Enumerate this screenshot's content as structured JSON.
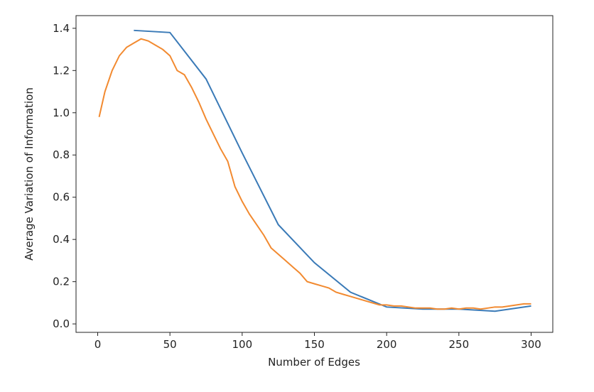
{
  "chart_data": {
    "type": "line",
    "x_label": "Number of Edges",
    "y_label": "Average Variation of Information",
    "xlim": [
      -15,
      315
    ],
    "ylim": [
      -0.04,
      1.46
    ],
    "xticks": [
      0,
      50,
      100,
      150,
      200,
      250,
      300
    ],
    "yticks": [
      {
        "value": 0,
        "label": "0.0"
      },
      0.2,
      0.4,
      0.6,
      0.8,
      {
        "value": 1,
        "label": "1.0"
      },
      1.2,
      1.4
    ],
    "grid": false,
    "series": [
      {
        "color": "#3a7ab7",
        "x": [
          25,
          50,
          75,
          100,
          125,
          150,
          175,
          200,
          225,
          250,
          275,
          300
        ],
        "values": [
          1.39,
          1.38,
          1.16,
          0.81,
          0.47,
          0.29,
          0.15,
          0.08,
          0.07,
          0.07,
          0.06,
          0.085
        ]
      },
      {
        "color": "#f28a30",
        "x": [
          1,
          5,
          10,
          15,
          20,
          25,
          30,
          35,
          40,
          45,
          50,
          55,
          60,
          65,
          70,
          75,
          80,
          85,
          90,
          95,
          100,
          105,
          110,
          115,
          120,
          125,
          130,
          135,
          140,
          145,
          150,
          155,
          160,
          165,
          170,
          175,
          180,
          185,
          190,
          195,
          200,
          205,
          210,
          215,
          220,
          225,
          230,
          235,
          240,
          245,
          250,
          255,
          260,
          265,
          270,
          275,
          280,
          285,
          290,
          295,
          300
        ],
        "values": [
          0.98,
          1.1,
          1.2,
          1.27,
          1.31,
          1.33,
          1.35,
          1.34,
          1.32,
          1.3,
          1.27,
          1.2,
          1.18,
          1.12,
          1.05,
          0.97,
          0.9,
          0.83,
          0.77,
          0.65,
          0.58,
          0.52,
          0.47,
          0.42,
          0.36,
          0.33,
          0.3,
          0.27,
          0.24,
          0.2,
          0.19,
          0.18,
          0.17,
          0.15,
          0.14,
          0.13,
          0.12,
          0.11,
          0.1,
          0.09,
          0.09,
          0.085,
          0.085,
          0.08,
          0.075,
          0.075,
          0.075,
          0.07,
          0.07,
          0.075,
          0.07,
          0.075,
          0.075,
          0.07,
          0.075,
          0.08,
          0.08,
          0.085,
          0.09,
          0.095,
          0.095
        ]
      }
    ]
  }
}
